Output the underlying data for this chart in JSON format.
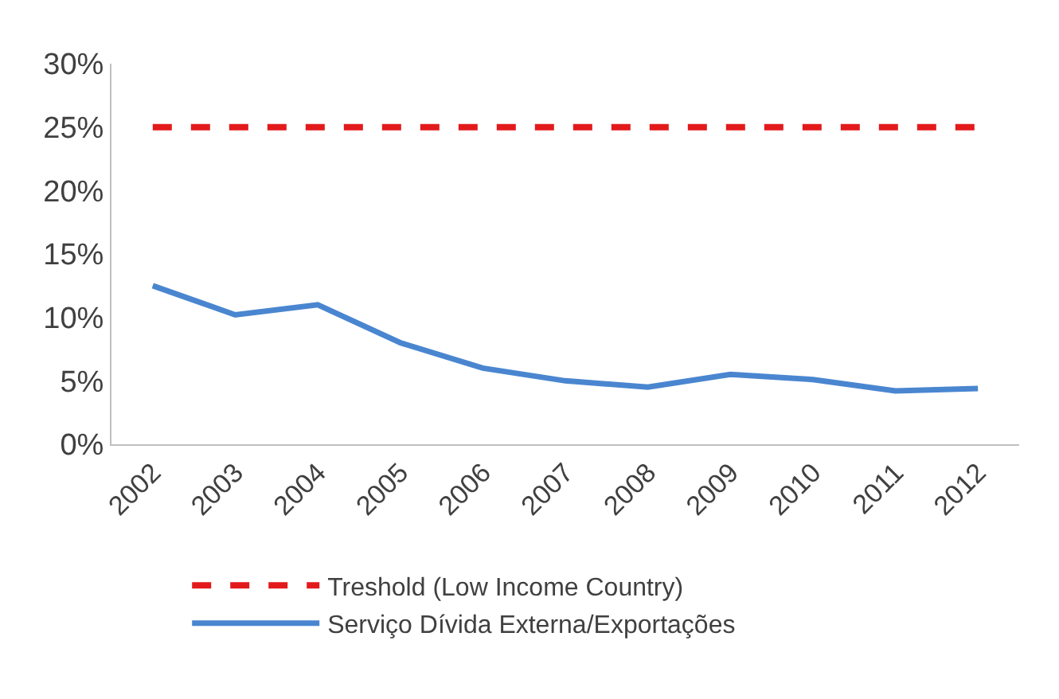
{
  "chart_data": {
    "type": "line",
    "categories": [
      "2002",
      "2003",
      "2004",
      "2005",
      "2006",
      "2007",
      "2008",
      "2009",
      "2010",
      "2011",
      "2012"
    ],
    "series": [
      {
        "name": "Treshold (Low Income Country)",
        "color": "#e31a1c",
        "line_style": "dashed",
        "values": [
          25,
          25,
          25,
          25,
          25,
          25,
          25,
          25,
          25,
          25,
          25
        ]
      },
      {
        "name": "Serviço Dívida Externa/Exportações",
        "color": "#4a86d0",
        "line_style": "solid",
        "values": [
          12.5,
          10.2,
          11,
          8,
          6,
          5,
          4.5,
          5.5,
          5.1,
          4.2,
          4.4
        ]
      }
    ],
    "ylim": [
      0,
      30
    ],
    "yticks": [
      {
        "value": 0,
        "label": "0%"
      },
      {
        "value": 5,
        "label": "5%"
      },
      {
        "value": 10,
        "label": "10%"
      },
      {
        "value": 15,
        "label": "15%"
      },
      {
        "value": 20,
        "label": "20%"
      },
      {
        "value": 25,
        "label": "25%"
      },
      {
        "value": 30,
        "label": "30%"
      }
    ],
    "grid": false,
    "legend": "bottom",
    "marker": "none"
  }
}
